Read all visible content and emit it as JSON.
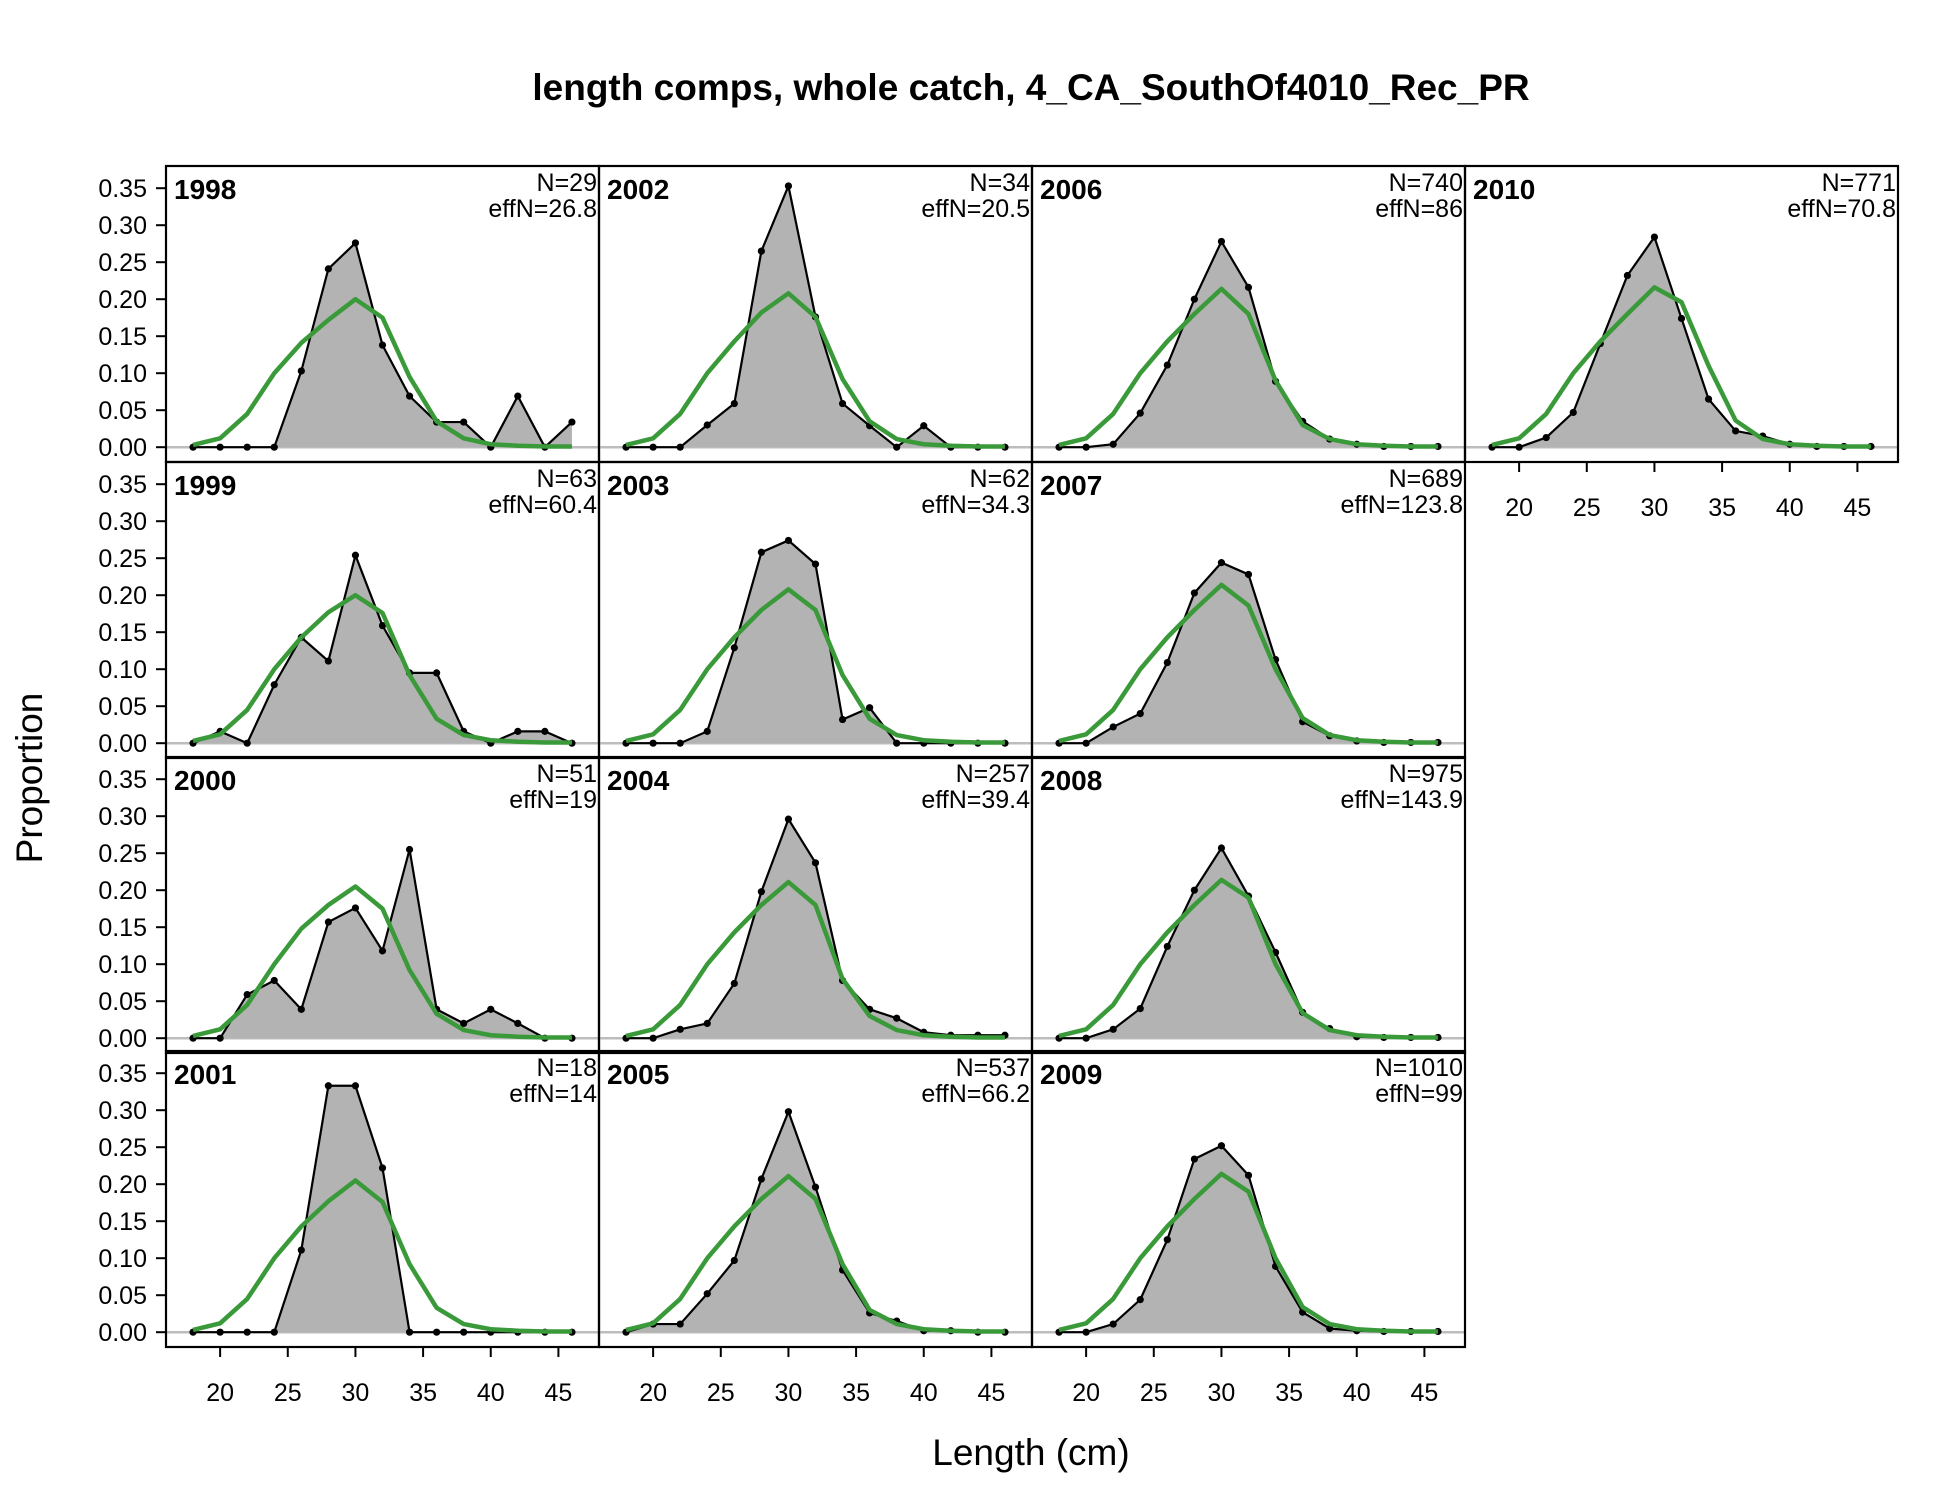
{
  "chart_data": {
    "type": "area",
    "title": "length comps, whole catch, 4_CA_SouthOf4010_Rec_PR",
    "xlabel": "Length (cm)",
    "ylabel": "Proportion",
    "xlim": [
      16,
      48
    ],
    "ylim": [
      -0.02,
      0.38
    ],
    "xticks": [
      "20",
      "25",
      "30",
      "35",
      "40",
      "45"
    ],
    "yticks": [
      "0.00",
      "0.05",
      "0.10",
      "0.15",
      "0.20",
      "0.25",
      "0.30",
      "0.35"
    ],
    "grid": false,
    "layout": {
      "columns": 4,
      "rows": 4,
      "order": "column-major"
    },
    "series_style": {
      "observed_fill": "#b3b3b3",
      "observed_line": "#000000",
      "expected_line": "#3a9a3a"
    },
    "x": [
      18,
      20,
      22,
      24,
      26,
      28,
      30,
      32,
      34,
      36,
      38,
      40,
      42,
      44,
      46
    ],
    "panels": [
      {
        "year": "1998",
        "n_label": "N=29",
        "effn_label": "effN=26.8",
        "observed": [
          0,
          0,
          0,
          0,
          0.103,
          0.241,
          0.276,
          0.138,
          0.069,
          0.034,
          0.034,
          0,
          0.069,
          0,
          0.034
        ],
        "expected": [
          0.003,
          0.012,
          0.045,
          0.1,
          0.141,
          0.172,
          0.2,
          0.175,
          0.095,
          0.035,
          0.012,
          0.004,
          0.002,
          0.001,
          0.001
        ]
      },
      {
        "year": "1999",
        "n_label": "N=63",
        "effn_label": "effN=60.4",
        "observed": [
          0,
          0.016,
          0,
          0.079,
          0.143,
          0.111,
          0.254,
          0.159,
          0.095,
          0.095,
          0.016,
          0,
          0.016,
          0.016,
          0
        ],
        "expected": [
          0.003,
          0.012,
          0.045,
          0.1,
          0.143,
          0.177,
          0.2,
          0.176,
          0.092,
          0.033,
          0.011,
          0.004,
          0.002,
          0.001,
          0.001
        ]
      },
      {
        "year": "2000",
        "n_label": "N=51",
        "effn_label": "effN=19",
        "observed": [
          0,
          0,
          0.059,
          0.078,
          0.039,
          0.157,
          0.176,
          0.118,
          0.255,
          0.039,
          0.02,
          0.039,
          0.02,
          0,
          0
        ],
        "expected": [
          0.003,
          0.012,
          0.045,
          0.1,
          0.148,
          0.18,
          0.205,
          0.175,
          0.092,
          0.033,
          0.011,
          0.004,
          0.002,
          0.001,
          0.001
        ]
      },
      {
        "year": "2001",
        "n_label": "N=18",
        "effn_label": "effN=14",
        "observed": [
          0,
          0,
          0,
          0,
          0.111,
          0.333,
          0.333,
          0.222,
          0,
          0,
          0,
          0,
          0,
          0,
          0
        ],
        "expected": [
          0.003,
          0.012,
          0.045,
          0.1,
          0.143,
          0.177,
          0.205,
          0.176,
          0.092,
          0.033,
          0.011,
          0.004,
          0.002,
          0.001,
          0.001
        ]
      },
      {
        "year": "2002",
        "n_label": "N=34",
        "effn_label": "effN=20.5",
        "observed": [
          0,
          0,
          0,
          0.03,
          0.059,
          0.265,
          0.353,
          0.176,
          0.059,
          0.029,
          0,
          0.029,
          0,
          0,
          0
        ],
        "expected": [
          0.003,
          0.012,
          0.045,
          0.1,
          0.143,
          0.182,
          0.208,
          0.176,
          0.092,
          0.035,
          0.011,
          0.004,
          0.002,
          0.001,
          0.001
        ]
      },
      {
        "year": "2003",
        "n_label": "N=62",
        "effn_label": "effN=34.3",
        "observed": [
          0,
          0,
          0,
          0.016,
          0.129,
          0.258,
          0.274,
          0.242,
          0.032,
          0.048,
          0,
          0,
          0,
          0,
          0
        ],
        "expected": [
          0.003,
          0.012,
          0.045,
          0.1,
          0.143,
          0.18,
          0.208,
          0.18,
          0.092,
          0.033,
          0.011,
          0.004,
          0.002,
          0.001,
          0.001
        ]
      },
      {
        "year": "2004",
        "n_label": "N=257",
        "effn_label": "effN=39.4",
        "observed": [
          0,
          0,
          0.012,
          0.02,
          0.074,
          0.198,
          0.296,
          0.237,
          0.078,
          0.039,
          0.027,
          0.008,
          0.004,
          0.004,
          0.004
        ],
        "expected": [
          0.003,
          0.012,
          0.045,
          0.1,
          0.143,
          0.18,
          0.211,
          0.18,
          0.08,
          0.03,
          0.011,
          0.004,
          0.002,
          0.001,
          0.001
        ]
      },
      {
        "year": "2005",
        "n_label": "N=537",
        "effn_label": "effN=66.2",
        "observed": [
          0,
          0.011,
          0.011,
          0.052,
          0.097,
          0.207,
          0.298,
          0.196,
          0.084,
          0.026,
          0.015,
          0.002,
          0.002,
          0,
          0
        ],
        "expected": [
          0.003,
          0.012,
          0.045,
          0.1,
          0.143,
          0.18,
          0.211,
          0.18,
          0.092,
          0.03,
          0.011,
          0.004,
          0.002,
          0.001,
          0.001
        ]
      },
      {
        "year": "2006",
        "n_label": "N=740",
        "effn_label": "effN=86",
        "observed": [
          0,
          0,
          0.004,
          0.046,
          0.111,
          0.2,
          0.278,
          0.216,
          0.089,
          0.035,
          0.011,
          0.004,
          0.001,
          0.001,
          0.001
        ],
        "expected": [
          0.003,
          0.012,
          0.045,
          0.1,
          0.143,
          0.18,
          0.214,
          0.18,
          0.09,
          0.03,
          0.011,
          0.004,
          0.002,
          0.001,
          0.001
        ]
      },
      {
        "year": "2007",
        "n_label": "N=689",
        "effn_label": "effN=123.8",
        "observed": [
          0,
          0,
          0.022,
          0.04,
          0.109,
          0.203,
          0.244,
          0.228,
          0.113,
          0.029,
          0.01,
          0.003,
          0.001,
          0.001,
          0.001
        ],
        "expected": [
          0.003,
          0.012,
          0.045,
          0.1,
          0.143,
          0.18,
          0.214,
          0.186,
          0.1,
          0.034,
          0.011,
          0.004,
          0.002,
          0.001,
          0.001
        ]
      },
      {
        "year": "2008",
        "n_label": "N=975",
        "effn_label": "effN=143.9",
        "observed": [
          0,
          0,
          0.012,
          0.04,
          0.124,
          0.2,
          0.257,
          0.192,
          0.116,
          0.035,
          0.013,
          0.002,
          0.001,
          0.001,
          0.001
        ],
        "expected": [
          0.003,
          0.012,
          0.045,
          0.1,
          0.143,
          0.18,
          0.214,
          0.19,
          0.1,
          0.034,
          0.011,
          0.004,
          0.002,
          0.001,
          0.001
        ]
      },
      {
        "year": "2009",
        "n_label": "N=1010",
        "effn_label": "effN=99",
        "observed": [
          0,
          0,
          0.011,
          0.044,
          0.125,
          0.234,
          0.252,
          0.212,
          0.089,
          0.027,
          0.005,
          0.002,
          0.001,
          0.001,
          0.001
        ],
        "expected": [
          0.003,
          0.012,
          0.045,
          0.1,
          0.143,
          0.18,
          0.214,
          0.19,
          0.1,
          0.034,
          0.011,
          0.004,
          0.002,
          0.001,
          0.001
        ]
      },
      {
        "year": "2010",
        "n_label": "N=771",
        "effn_label": "effN=70.8",
        "observed": [
          0,
          0,
          0.013,
          0.047,
          0.14,
          0.232,
          0.284,
          0.174,
          0.065,
          0.022,
          0.015,
          0.004,
          0.001,
          0.001,
          0.001
        ],
        "expected": [
          0.003,
          0.012,
          0.045,
          0.1,
          0.143,
          0.18,
          0.216,
          0.196,
          0.11,
          0.036,
          0.011,
          0.004,
          0.002,
          0.001,
          0.001
        ]
      }
    ]
  }
}
